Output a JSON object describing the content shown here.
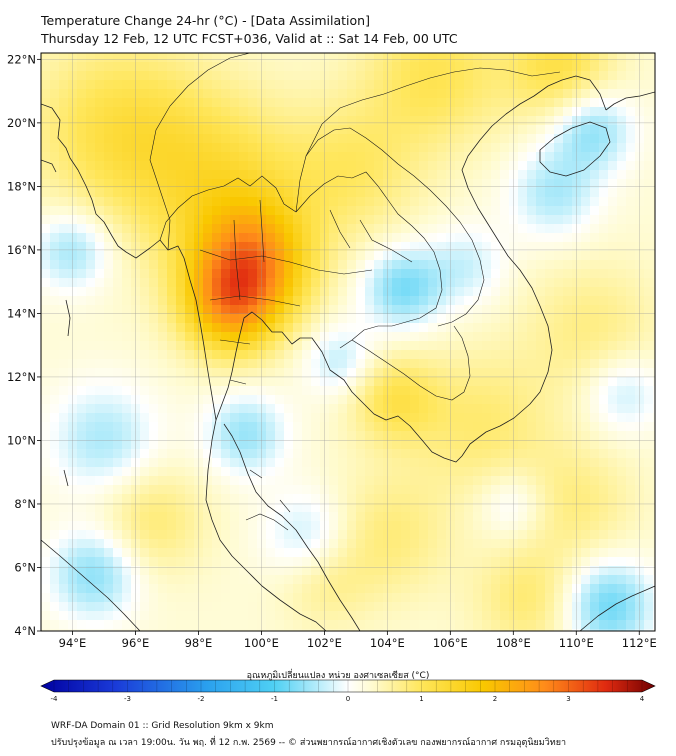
{
  "header": {
    "title_line1": "Temperature Change 24-hr (°C) - [Data Assimilation]",
    "title_line2": "Thursday 12 Feb, 12 UTC FCST+036, Valid at :: Sat 14 Feb, 00 UTC"
  },
  "map": {
    "lat_labels": [
      "22°N",
      "20°N",
      "18°N",
      "16°N",
      "14°N",
      "12°N",
      "10°N",
      "8°N",
      "6°N",
      "4°N"
    ],
    "lat_values": [
      22,
      20,
      18,
      16,
      14,
      12,
      10,
      8,
      6,
      4
    ],
    "lon_labels": [
      "94°E",
      "96°E",
      "98°E",
      "100°E",
      "102°E",
      "104°E",
      "106°E",
      "108°E",
      "110°E",
      "112°E"
    ],
    "lon_values": [
      94,
      96,
      98,
      100,
      102,
      104,
      106,
      108,
      110,
      112
    ],
    "extent": {
      "lon_min": 93,
      "lon_max": 112.5,
      "lat_min": 4,
      "lat_max": 22.2
    },
    "warm_spots": [
      {
        "lon": 99.7,
        "lat": 15.6,
        "amp": 1.9,
        "spread": 1.3
      },
      {
        "lon": 99.0,
        "lat": 14.2,
        "amp": 1.6,
        "spread": 1.1
      },
      {
        "lon": 98.8,
        "lat": 18.0,
        "amp": 0.9,
        "spread": 2.0
      },
      {
        "lon": 95.5,
        "lat": 19.8,
        "amp": 0.9,
        "spread": 2.0
      },
      {
        "lon": 103.0,
        "lat": 18.5,
        "amp": 0.6,
        "spread": 1.5
      },
      {
        "lon": 105.5,
        "lat": 21.5,
        "amp": 0.8,
        "spread": 1.6
      },
      {
        "lon": 109.5,
        "lat": 21.8,
        "amp": 0.9,
        "spread": 1.2
      },
      {
        "lon": 104.2,
        "lat": 11.3,
        "amp": 0.8,
        "spread": 1.0
      },
      {
        "lon": 107.0,
        "lat": 10.5,
        "amp": 0.6,
        "spread": 1.6
      },
      {
        "lon": 110.5,
        "lat": 13.5,
        "amp": 0.5,
        "spread": 1.5
      },
      {
        "lon": 104.0,
        "lat": 7.0,
        "amp": 0.55,
        "spread": 1.4
      },
      {
        "lon": 110.0,
        "lat": 8.0,
        "amp": 0.5,
        "spread": 1.3
      },
      {
        "lon": 96.5,
        "lat": 7.5,
        "amp": 0.6,
        "spread": 1.2
      },
      {
        "lon": 108.5,
        "lat": 5.0,
        "amp": 0.6,
        "spread": 1.2
      },
      {
        "lon": 102.0,
        "lat": 5.5,
        "amp": 0.4,
        "spread": 1.0
      }
    ],
    "cool_spots": [
      {
        "lon": 104.5,
        "lat": 14.8,
        "amp": -1.0,
        "spread": 0.9
      },
      {
        "lon": 94.0,
        "lat": 16.0,
        "amp": -0.8,
        "spread": 0.9
      },
      {
        "lon": 95.0,
        "lat": 10.0,
        "amp": -0.7,
        "spread": 1.2
      },
      {
        "lon": 94.7,
        "lat": 5.8,
        "amp": -0.9,
        "spread": 1.0
      },
      {
        "lon": 99.5,
        "lat": 10.2,
        "amp": -0.8,
        "spread": 0.9
      },
      {
        "lon": 102.5,
        "lat": 12.5,
        "amp": -0.6,
        "spread": 0.8
      },
      {
        "lon": 101.5,
        "lat": 7.0,
        "amp": -0.6,
        "spread": 1.0
      },
      {
        "lon": 110.5,
        "lat": 19.8,
        "amp": -0.9,
        "spread": 0.9
      },
      {
        "lon": 109.3,
        "lat": 17.8,
        "amp": -0.7,
        "spread": 1.0
      },
      {
        "lon": 106.5,
        "lat": 15.5,
        "amp": -0.5,
        "spread": 0.9
      },
      {
        "lon": 111.0,
        "lat": 4.8,
        "amp": -1.1,
        "spread": 1.0
      },
      {
        "lon": 108.0,
        "lat": 8.0,
        "amp": -0.5,
        "spread": 0.8
      },
      {
        "lon": 111.5,
        "lat": 11.5,
        "amp": -0.6,
        "spread": 0.9
      }
    ]
  },
  "colorbar": {
    "label": "อุณหภูมิเปลี่ยนแปลง หน่วย องศาเซลเซียส (°C)",
    "ticks": [
      "-4",
      "-3",
      "-2",
      "-1",
      "0",
      "1",
      "2",
      "3",
      "4"
    ],
    "tick_values": [
      -4,
      -3,
      -2,
      -1,
      0,
      1,
      2,
      3,
      4
    ],
    "range": [
      -4,
      4
    ]
  },
  "footer": {
    "line1": "WRF-DA Domain 01 :: Grid Resolution 9km x 9km",
    "line2": "ปรับปรุงข้อมูล ณ เวลา 19:00น. วัน พฤ. ที่ 12 ก.พ. 2569 -- © ส่วนพยากรณ์อากาศเชิงตัวเลข กองพยากรณ์อากาศ กรมอุตุนิยมวิทยา"
  }
}
